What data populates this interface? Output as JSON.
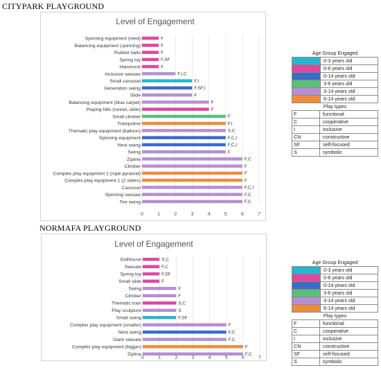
{
  "sections": [
    {
      "title": "CITYPARK PLAYGROUND"
    },
    {
      "title": "NORMAFA PLAYGROUND"
    }
  ],
  "age_colors": {
    "0-3 years old": "#25b6cf",
    "0-6 years old": "#e0479e",
    "0-14 years old": "#3b6cc7",
    "3-6 years old": "#59c07a",
    "3-14 years old": "#b58fd3",
    "6-14 years old": "#ef8c3c"
  },
  "legend": {
    "age_title": "Age Group Engaged",
    "age_groups": [
      {
        "label": "0-3 years old",
        "color": "#25b6cf"
      },
      {
        "label": "0-6 years old",
        "color": "#e0479e"
      },
      {
        "label": "0-14 years old",
        "color": "#3b6cc7"
      },
      {
        "label": "3-6 years old",
        "color": "#59c07a"
      },
      {
        "label": "3-14 years old",
        "color": "#b58fd3"
      },
      {
        "label": "6-14 years old",
        "color": "#ef8c3c"
      }
    ],
    "play_title": "Play types",
    "play_types": [
      {
        "code": "F",
        "label": "functional"
      },
      {
        "code": "C",
        "label": "cooperative"
      },
      {
        "code": "I",
        "label": "inclusive"
      },
      {
        "code": "CN",
        "label": "constructive"
      },
      {
        "code": "SF",
        "label": "self-focused"
      },
      {
        "code": "S",
        "label": "symbolic"
      }
    ]
  },
  "chart_data": [
    {
      "type": "bar",
      "orientation": "horizontal",
      "title": "Level of Engagement",
      "xlim": [
        0,
        7
      ],
      "xticks": [
        "0",
        "1",
        "2",
        "3",
        "4",
        "5",
        "6",
        "7"
      ],
      "bars": [
        {
          "category": "Spinning equipment (reed)",
          "value": 1,
          "age": "0-6 years old",
          "label": "F"
        },
        {
          "category": "Balancing equipment (spinning)",
          "value": 1,
          "age": "0-6 years old",
          "label": "F"
        },
        {
          "category": "Rubber balls",
          "value": 1,
          "age": "0-6 years old",
          "label": "F"
        },
        {
          "category": "Spring toy",
          "value": 1,
          "age": "0-6 years old",
          "label": "F,SF"
        },
        {
          "category": "Hammock",
          "value": 1,
          "age": "0-6 years old",
          "label": "F"
        },
        {
          "category": "Inclusive seesaw",
          "value": 2,
          "age": "3-14 years old",
          "label": "F,I,C"
        },
        {
          "category": "Small carousel",
          "value": 3,
          "age": "0-3 years old",
          "label": "F,I"
        },
        {
          "category": "Generation swing",
          "value": 3,
          "age": "0-14 years old",
          "label": "F,SF,I"
        },
        {
          "category": "Slide",
          "value": 3,
          "age": "3-14 years old",
          "label": "F"
        },
        {
          "category": "Balancing equipment (blue carpet)",
          "value": 4,
          "age": "3-14 years old",
          "label": "F"
        },
        {
          "category": "Playing hills (tunnel, slide)",
          "value": 4,
          "age": "0-6 years old",
          "label": "F"
        },
        {
          "category": "Small climber",
          "value": 5,
          "age": "3-6 years old",
          "label": "F"
        },
        {
          "category": "Trampoline",
          "value": 5,
          "age": "6-14 years old",
          "label": "F,I"
        },
        {
          "category": "Thematic play equipment (balloon)",
          "value": 5,
          "age": "3-14 years old",
          "label": "S,C"
        },
        {
          "category": "Spinning equipment",
          "value": 5,
          "age": "0-14 years old",
          "label": "F,C,I"
        },
        {
          "category": "Nest swing",
          "value": 5,
          "age": "0-14 years old",
          "label": "F,C,I"
        },
        {
          "category": "Swing",
          "value": 5,
          "age": "3-14 years old",
          "label": "F"
        },
        {
          "category": "Zipline",
          "value": 6,
          "age": "3-14 years old",
          "label": "F,C"
        },
        {
          "category": "Climber",
          "value": 6,
          "age": "3-14 years old",
          "label": "F"
        },
        {
          "category": "Complex play equipment 2 (rope pyramid)",
          "value": 6,
          "age": "6-14 years old",
          "label": "F"
        },
        {
          "category": "Complex play equipment 1 (2 slides)",
          "value": 6,
          "age": "6-14 years old",
          "label": "F"
        },
        {
          "category": "Carousel",
          "value": 6,
          "age": "3-14 years old",
          "label": "F,C,I"
        },
        {
          "category": "Spinning seesaw",
          "value": 6,
          "age": "3-14 years old",
          "label": "F,C"
        },
        {
          "category": "Tire swing",
          "value": 6,
          "age": "3-14 years old",
          "label": "F,C"
        }
      ]
    },
    {
      "type": "bar",
      "orientation": "horizontal",
      "title": "Level of Engagement",
      "xlim": [
        0,
        7
      ],
      "xticks": [
        "0",
        "1",
        "2",
        "3",
        "4",
        "5",
        "6",
        "7"
      ],
      "bars": [
        {
          "category": "Dollhouse",
          "value": 1,
          "age": "0-6 years old",
          "label": "S,C"
        },
        {
          "category": "Seesaw",
          "value": 1,
          "age": "0-6 years old",
          "label": "F,C"
        },
        {
          "category": "Spring toy",
          "value": 1,
          "age": "0-6 years old",
          "label": "F,SF"
        },
        {
          "category": "Small slide",
          "value": 1,
          "age": "0-6 years old",
          "label": "F"
        },
        {
          "category": "Swing",
          "value": 2,
          "age": "3-14 years old",
          "label": "F"
        },
        {
          "category": "Climber",
          "value": 2,
          "age": "3-14 years old",
          "label": "F"
        },
        {
          "category": "Thematic train",
          "value": 2,
          "age": "0-6 years old",
          "label": "S,C"
        },
        {
          "category": "Play sculpture",
          "value": 2,
          "age": "3-14 years old",
          "label": "S"
        },
        {
          "category": "Small swing",
          "value": 2,
          "age": "0-3 years old",
          "label": "F,SF"
        },
        {
          "category": "Complex play equipment (smaller)",
          "value": 5,
          "age": "3-14 years old",
          "label": "F"
        },
        {
          "category": "Nest swing",
          "value": 5,
          "age": "0-14 years old",
          "label": "F,C"
        },
        {
          "category": "Giant seesaw",
          "value": 5,
          "age": "3-14 years old",
          "label": "F,C"
        },
        {
          "category": "Complex play equipment (bigger)",
          "value": 6,
          "age": "6-14 years old",
          "label": "F"
        },
        {
          "category": "Zipline",
          "value": 6,
          "age": "3-14 years old",
          "label": "F,C"
        }
      ]
    }
  ]
}
